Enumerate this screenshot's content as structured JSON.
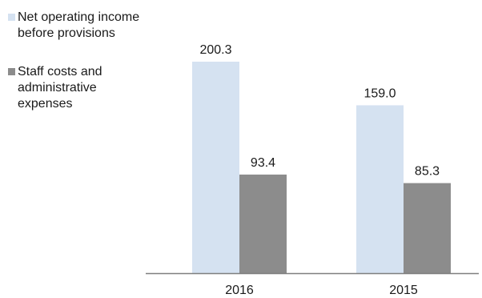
{
  "chart_data": {
    "type": "bar",
    "categories": [
      "2016",
      "2015"
    ],
    "series": [
      {
        "name": "Net operating income before provisions",
        "values": [
          200.3,
          159.0
        ],
        "color": "#d5e2f1"
      },
      {
        "name": "Staff costs and administrative expenses",
        "values": [
          93.4,
          85.3
        ],
        "color": "#8c8c8c"
      }
    ],
    "value_labels": [
      [
        "200.3",
        "159.0"
      ],
      [
        "93.4",
        "85.3"
      ]
    ],
    "ylim": [
      0,
      250
    ],
    "grid": false,
    "legend_position": "left",
    "axis_color": "#7f7f7f"
  },
  "legend": {
    "items": [
      {
        "label": "Net operating income before provisions"
      },
      {
        "label": "Staff costs and administrative expenses"
      }
    ]
  }
}
